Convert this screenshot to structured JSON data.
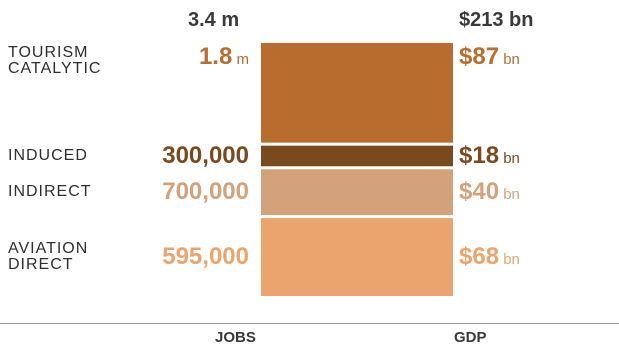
{
  "chart_data": {
    "type": "bar",
    "subtype": "stacked",
    "axis_labels": [
      "JOBS",
      "GDP"
    ],
    "totals": {
      "jobs": "3.4 m",
      "gdp": "$213 bn"
    },
    "segments": [
      {
        "key": "aviation_direct",
        "label": "AVIATION DIRECT",
        "label_lines": [
          "AVIATION",
          "DIRECT"
        ],
        "jobs": 595000,
        "jobs_text": "595,000",
        "jobs_unit": "",
        "gdp": 68,
        "gdp_text": "$68",
        "gdp_unit": "bn",
        "color": "#eba46d"
      },
      {
        "key": "indirect",
        "label": "INDIRECT",
        "label_lines": [
          "INDIRECT"
        ],
        "jobs": 700000,
        "jobs_text": "700,000",
        "jobs_unit": "",
        "gdp": 40,
        "gdp_text": "$40",
        "gdp_unit": "bn",
        "color": "#d4a27a"
      },
      {
        "key": "induced",
        "label": "INDUCED",
        "label_lines": [
          "INDUCED"
        ],
        "jobs": 300000,
        "jobs_text": "300,000",
        "jobs_unit": "",
        "gdp": 18,
        "gdp_text": "$18",
        "gdp_unit": "bn",
        "color": "#7a4a1f"
      },
      {
        "key": "tourism_catalytic",
        "label": "TOURISM CATALYTIC",
        "label_lines": [
          "TOURISM",
          "CATALYTIC"
        ],
        "jobs": 1800000,
        "jobs_text": "1.8",
        "jobs_unit": "m",
        "gdp": 87,
        "gdp_text": "$87",
        "gdp_unit": "bn",
        "color": "#b86d2e"
      }
    ]
  }
}
